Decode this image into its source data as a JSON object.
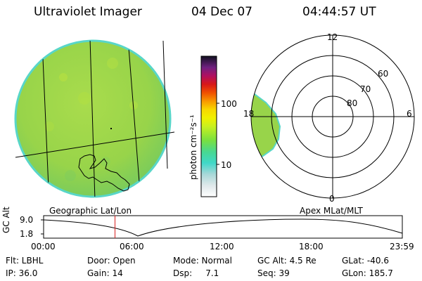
{
  "header": {
    "instrument": "Ultraviolet Imager",
    "date": "04 Dec 07",
    "time": "04:44:57 UT"
  },
  "left_panel": {
    "label": "Geographic Lat/Lon"
  },
  "right_panel": {
    "label": "Apex MLat/MLT",
    "lat_labels": [
      "60",
      "70",
      "80"
    ],
    "mlt_labels": {
      "top": "12",
      "right": "6",
      "bottom": "0",
      "left": "18"
    }
  },
  "colorbar": {
    "ticks": [
      "100",
      "10"
    ],
    "unit_label": "photon cm⁻²s⁻¹"
  },
  "timeline": {
    "ylabel": "GC Alt",
    "y_ticks": [
      "9.0",
      "1.8"
    ],
    "x_ticks": [
      "00:00",
      "06:00",
      "12:00",
      "18:00",
      "23:59"
    ],
    "current_time_fraction": 0.199
  },
  "status": {
    "flt": "Flt: LBHL",
    "ip": "IP: 36.0",
    "door": "Door: Open",
    "gain": "Gain: 14",
    "mode": "Mode: Normal",
    "dsp": "Dsp:     7.1",
    "gc_alt": "GC Alt: 4.5 Re",
    "seq": "Seq: 39",
    "glat": "GLat: -40.6",
    "glon": "GLon: 185.7"
  },
  "colors": {
    "disk_fill": "#9ad84a",
    "disk_edge": "#58d6c8",
    "timeline_marker": "#d82020"
  }
}
